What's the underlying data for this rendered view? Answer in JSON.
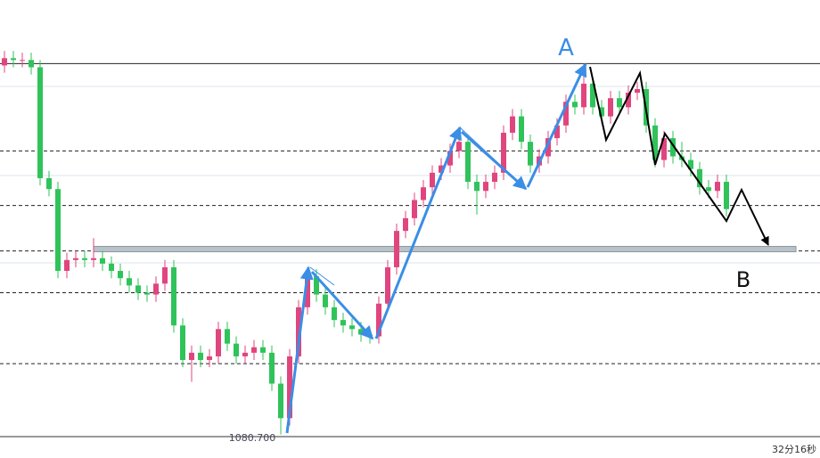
{
  "chart_data": {
    "type": "candlestick",
    "ylim": [
      1079.9,
      1104.6
    ],
    "up_color": "#e0457e",
    "down_color": "#2fc35a",
    "open": [
      1101.0,
      1101.4,
      1101.3,
      1101.3,
      1100.9,
      1094.8,
      1094.2,
      1089.7,
      1090.3,
      1090.4,
      1090.3,
      1090.4,
      1090.1,
      1089.7,
      1089.3,
      1088.9,
      1088.5,
      1088.4,
      1089.0,
      1089.9,
      1086.7,
      1084.8,
      1085.2,
      1084.8,
      1085.0,
      1086.5,
      1085.7,
      1085.0,
      1085.2,
      1085.5,
      1085.2,
      1083.5,
      1081.6,
      1085.0,
      1087.7,
      1089.4,
      1088.4,
      1087.7,
      1087.0,
      1086.7,
      1086.5,
      1086.2,
      1086.1,
      1087.9,
      1089.9,
      1091.9,
      1092.6,
      1093.6,
      1094.3,
      1095.1,
      1095.5,
      1096.3,
      1096.8,
      1094.6,
      1094.1,
      1094.6,
      1095.1,
      1097.3,
      1098.2,
      1096.8,
      1095.5,
      1096.0,
      1097.0,
      1097.7,
      1099.0,
      1098.7,
      1100.0,
      1098.7,
      1098.2,
      1099.2,
      1098.7,
      1099.5,
      1099.7,
      1097.7,
      1095.8,
      1097.0,
      1096.0,
      1095.8,
      1095.3,
      1094.3,
      1094.1,
      1094.6
    ],
    "high": [
      1101.8,
      1101.8,
      1101.7,
      1101.7,
      1101.3,
      1095.2,
      1094.6,
      1090.7,
      1090.8,
      1090.8,
      1091.5,
      1090.8,
      1090.5,
      1090.1,
      1089.7,
      1089.3,
      1088.9,
      1089.4,
      1090.3,
      1090.3,
      1087.1,
      1085.6,
      1085.6,
      1085.4,
      1086.9,
      1086.9,
      1086.1,
      1085.6,
      1085.9,
      1085.9,
      1085.6,
      1083.9,
      1085.4,
      1088.1,
      1089.8,
      1089.8,
      1088.8,
      1088.1,
      1087.4,
      1087.1,
      1086.9,
      1086.6,
      1088.3,
      1090.3,
      1092.3,
      1093.0,
      1094.0,
      1094.7,
      1095.5,
      1095.9,
      1096.7,
      1097.2,
      1097.2,
      1095.0,
      1095.0,
      1095.5,
      1097.7,
      1098.6,
      1098.6,
      1097.2,
      1096.4,
      1097.4,
      1098.1,
      1099.4,
      1099.4,
      1101.1,
      1100.4,
      1099.1,
      1099.6,
      1099.6,
      1099.9,
      1100.1,
      1100.1,
      1098.1,
      1097.4,
      1097.4,
      1096.8,
      1096.2,
      1095.7,
      1094.7,
      1095.0,
      1095.0
    ],
    "low": [
      1100.6,
      1100.9,
      1100.9,
      1100.5,
      1094.4,
      1093.8,
      1089.3,
      1089.3,
      1089.9,
      1089.9,
      1089.9,
      1089.7,
      1089.3,
      1088.9,
      1088.5,
      1088.1,
      1088.0,
      1088.0,
      1088.6,
      1086.3,
      1084.4,
      1083.6,
      1084.4,
      1084.4,
      1084.6,
      1085.3,
      1084.6,
      1084.6,
      1084.8,
      1084.8,
      1083.1,
      1080.7,
      1081.2,
      1084.6,
      1087.3,
      1088.0,
      1087.3,
      1086.6,
      1086.3,
      1086.1,
      1085.8,
      1085.7,
      1085.7,
      1087.5,
      1089.5,
      1091.5,
      1092.2,
      1093.2,
      1093.9,
      1094.7,
      1095.1,
      1095.9,
      1094.2,
      1092.8,
      1093.7,
      1094.2,
      1094.7,
      1096.9,
      1096.4,
      1095.1,
      1095.1,
      1095.6,
      1096.6,
      1097.3,
      1098.3,
      1098.3,
      1098.3,
      1097.8,
      1097.8,
      1098.3,
      1098.3,
      1099.1,
      1097.3,
      1095.4,
      1095.4,
      1095.6,
      1095.4,
      1094.9,
      1093.9,
      1093.7,
      1093.7,
      1092.7
    ],
    "close": [
      1101.4,
      1101.3,
      1101.3,
      1100.9,
      1094.8,
      1094.2,
      1089.7,
      1090.3,
      1090.4,
      1090.3,
      1090.4,
      1090.1,
      1089.7,
      1089.3,
      1088.9,
      1088.5,
      1088.4,
      1089.0,
      1089.9,
      1086.7,
      1084.8,
      1085.2,
      1084.8,
      1085.0,
      1086.5,
      1085.7,
      1085.0,
      1085.2,
      1085.5,
      1085.2,
      1083.5,
      1081.6,
      1085.0,
      1087.7,
      1089.4,
      1088.4,
      1087.7,
      1087.0,
      1086.7,
      1086.5,
      1086.2,
      1086.1,
      1087.9,
      1089.9,
      1091.9,
      1092.6,
      1093.6,
      1094.3,
      1095.1,
      1095.5,
      1096.3,
      1096.8,
      1094.6,
      1094.1,
      1094.6,
      1095.1,
      1097.3,
      1098.2,
      1096.8,
      1095.5,
      1096.0,
      1097.0,
      1097.7,
      1099.0,
      1098.7,
      1100.0,
      1098.7,
      1098.2,
      1099.2,
      1098.7,
      1099.5,
      1099.7,
      1097.7,
      1095.8,
      1097.0,
      1096.0,
      1095.8,
      1095.3,
      1094.3,
      1094.1,
      1094.6,
      1093.1
    ],
    "levels": [
      {
        "value": 1101.1,
        "style": "solid"
      },
      {
        "value": 1096.3,
        "style": "dashed"
      },
      {
        "value": 1093.3,
        "style": "dashed"
      },
      {
        "value": 1090.8,
        "style": "dashed"
      },
      {
        "value": 1088.5,
        "style": "dashed"
      },
      {
        "value": 1084.6,
        "style": "dashed"
      }
    ],
    "band": 1090.9,
    "low_label": {
      "value": 1080.7,
      "label": "1080.700"
    },
    "annotations": [
      "A",
      "B"
    ],
    "timer": "32分16秒"
  }
}
